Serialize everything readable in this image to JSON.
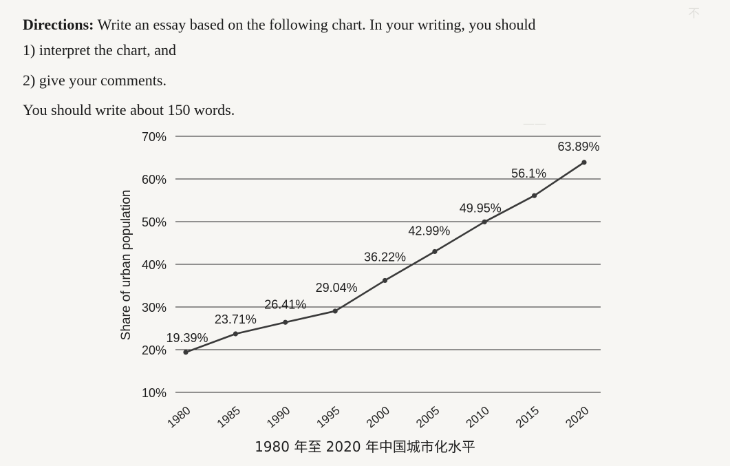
{
  "directions": {
    "label": "Directions:",
    "text": " Write an essay based on the following chart. In your writing, you should",
    "item1": "1) interpret the chart, and",
    "item2": "2) give your comments.",
    "word_count": "You should write about 150 words."
  },
  "chart_data": {
    "type": "line",
    "title": "1980 年至 2020 年中国城市化水平",
    "xlabel": "",
    "ylabel": "Share of urban population",
    "categories": [
      "1980",
      "1985",
      "1990",
      "1995",
      "2000",
      "2005",
      "2010",
      "2015",
      "2020"
    ],
    "values": [
      19.39,
      23.71,
      26.41,
      29.04,
      36.22,
      42.99,
      49.95,
      56.1,
      63.89
    ],
    "data_labels": [
      "19.39%",
      "23.71%",
      "26.41%",
      "29.04%",
      "36.22%",
      "42.99%",
      "49.95%",
      "56.1%",
      "63.89%"
    ],
    "yticks": [
      "10%",
      "20%",
      "30%",
      "40%",
      "50%",
      "60%",
      "70%"
    ],
    "ylim": [
      10,
      70
    ],
    "grid": "horizontal",
    "line_color": "#3a3a3a"
  }
}
